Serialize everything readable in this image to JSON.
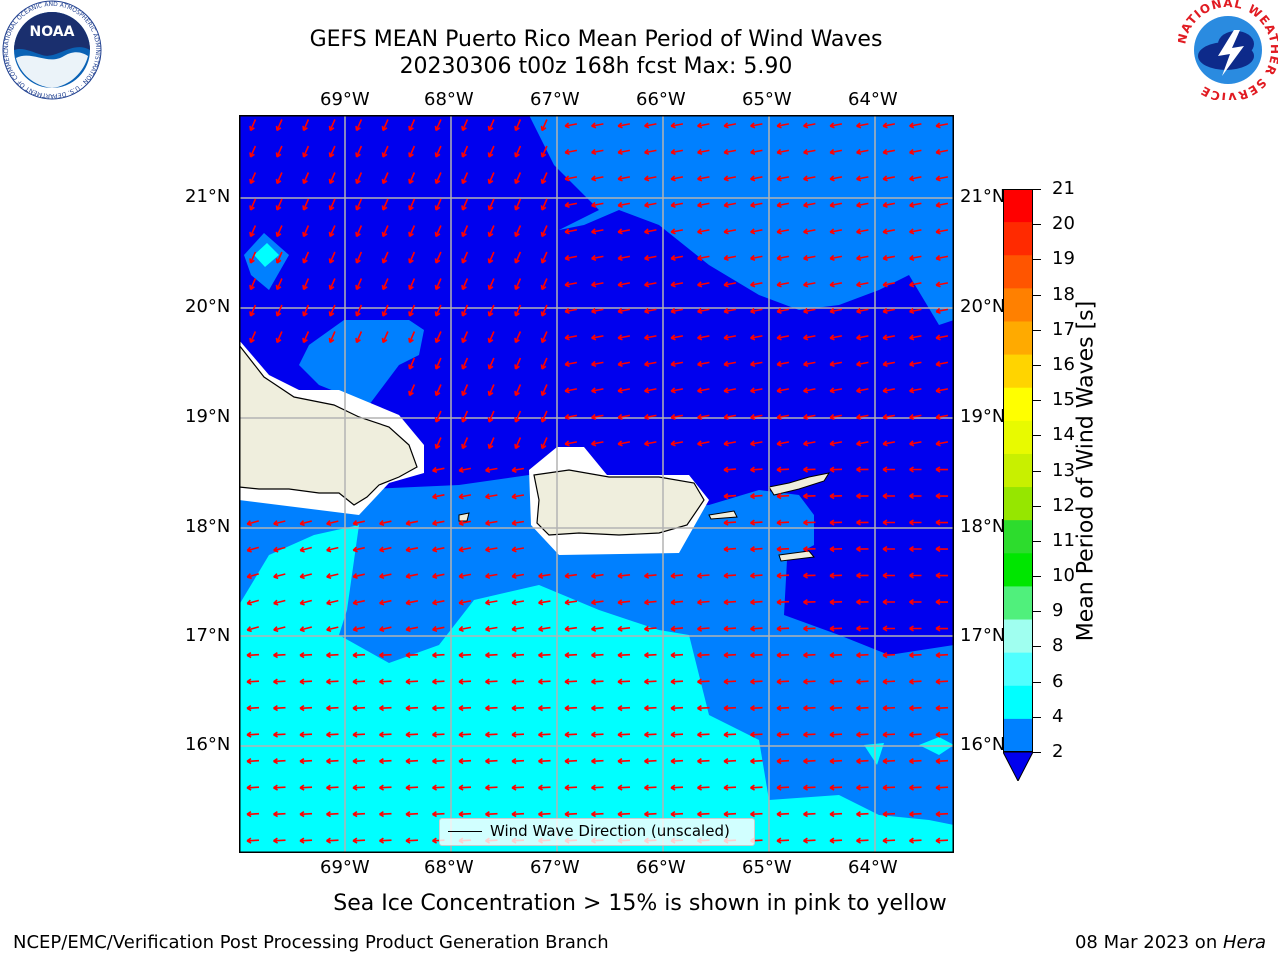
{
  "header": {
    "title_line1": "GEFS MEAN Puerto Rico Mean Period of Wind Waves",
    "title_line2": "20230306 t00z 168h fcst   Max: 5.90"
  },
  "logos": {
    "left_text": "NOAA",
    "left_ring_text": "NATIONAL OCEANIC AND ATMOSPHERIC ADMINISTRATION · U.S. DEPARTMENT OF COMMERCE ·",
    "right_ring_text": "NATIONAL WEATHER SERVICE"
  },
  "map": {
    "lon_labels": [
      "69°W",
      "68°W",
      "67°W",
      "66°W",
      "65°W",
      "64°W"
    ],
    "lat_labels": [
      "21°N",
      "20°N",
      "19°N",
      "18°N",
      "17°N",
      "16°N"
    ],
    "legend_label": "Wind Wave Direction (unscaled)",
    "colors": {
      "deep_blue": "#0000ee",
      "mid_blue": "#0080ff",
      "cyan": "#00ffff",
      "land": "#efeedd",
      "arrow": "#ff0000",
      "grid": "#b3b3b3"
    }
  },
  "colorbar": {
    "label": "Mean Period of Wind Waves [s]",
    "ticks": [
      "21",
      "20",
      "19",
      "18",
      "17",
      "16",
      "15",
      "14",
      "13",
      "12",
      "11",
      "10",
      "9",
      "8",
      "6",
      "4",
      "2"
    ],
    "colors": [
      "#ff0000",
      "#ff2a00",
      "#ff5500",
      "#ff8000",
      "#ffaa00",
      "#ffd400",
      "#ffff00",
      "#e8fa00",
      "#c8f000",
      "#96e600",
      "#2ddc2d",
      "#00e600",
      "#50f07c",
      "#a0fff0",
      "#50ffff",
      "#00ffff",
      "#0080ff"
    ],
    "under_color": "#0000ee"
  },
  "caption": "Sea Ice Concentration > 15% is shown in pink to yellow",
  "footer": {
    "left": "NCEP/EMC/Verification Post Processing Product Generation Branch",
    "right_prefix": "08 Mar 2023 on ",
    "right_host": "Hera"
  }
}
